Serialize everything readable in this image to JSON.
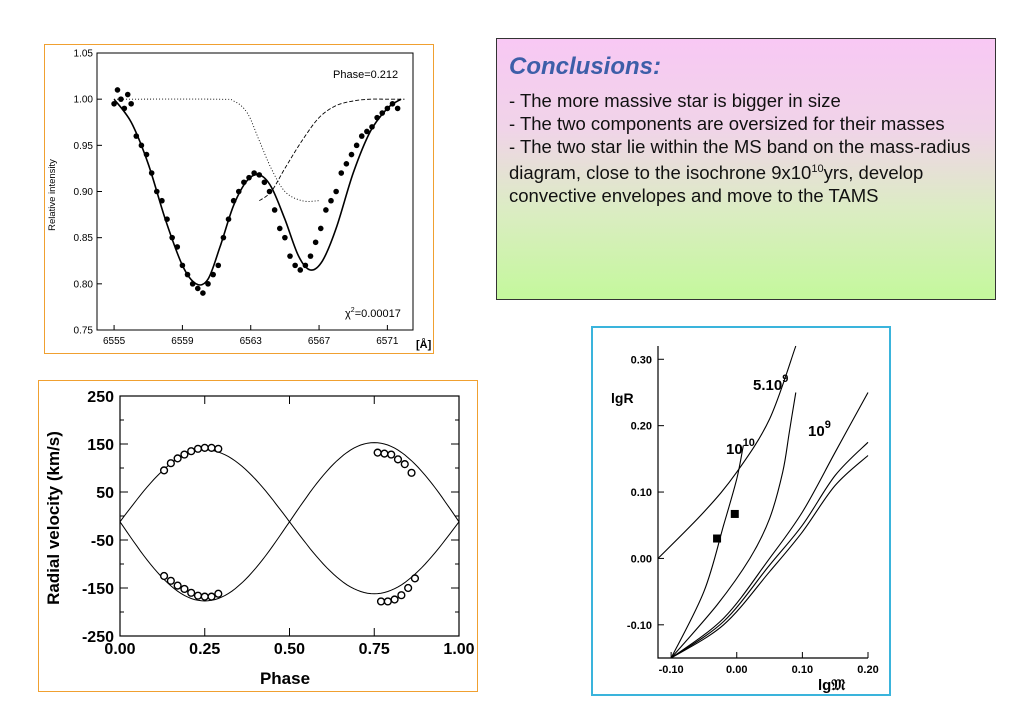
{
  "conclusions": {
    "title": "Conclusions:",
    "line1": "- The more massive star is bigger in size",
    "line2": "- The two components are oversized for their masses",
    "line3_pre": "- The two star lie within the MS band on the mass-radius diagram, close to the isochrone 9x10",
    "line3_sup": "10",
    "line3_post": "yrs, develop convective envelopes and move to the TAMS"
  },
  "colors": {
    "spectrum_frame": "#f0a030",
    "rv_frame": "#f0a030",
    "mr_frame": "#3ab4dc",
    "conclusions_border": "#333333"
  },
  "chart_data": [
    {
      "type": "scatter",
      "ylabel": "Relative intensity",
      "xunit": "[Å]",
      "phase_label": "Phase=0.212",
      "chi2_label": "χ",
      "chi2_sup": "2",
      "chi2_value": "=0.00017",
      "xlim": [
        6554,
        6572.5
      ],
      "ylim": [
        0.75,
        1.05
      ],
      "xticks": [
        "6555",
        "6559",
        "6563",
        "6567",
        "6571"
      ],
      "yticks": [
        "0.75",
        "0.80",
        "0.85",
        "0.90",
        "0.95",
        "1.00",
        "1.05"
      ],
      "series": [
        {
          "style": "points",
          "x": [
            6555.0,
            6555.2,
            6555.4,
            6555.6,
            6555.8,
            6556.0,
            6556.3,
            6556.6,
            6556.9,
            6557.2,
            6557.5,
            6557.8,
            6558.1,
            6558.4,
            6558.7,
            6559.0,
            6559.3,
            6559.6,
            6559.9,
            6560.2,
            6560.5,
            6560.8,
            6561.1,
            6561.4,
            6561.7,
            6562.0,
            6562.3,
            6562.6,
            6562.9,
            6563.2,
            6563.5,
            6563.8,
            6564.1,
            6564.4,
            6564.7,
            6565.0,
            6565.3,
            6565.6,
            6565.9,
            6566.2,
            6566.5,
            6566.8,
            6567.1,
            6567.4,
            6567.7,
            6568.0,
            6568.3,
            6568.6,
            6568.9,
            6569.2,
            6569.5,
            6569.8,
            6570.1,
            6570.4,
            6570.7,
            6571.0,
            6571.3,
            6571.6
          ],
          "y": [
            0.995,
            1.01,
            1.0,
            0.99,
            1.005,
            0.995,
            0.96,
            0.95,
            0.94,
            0.92,
            0.9,
            0.89,
            0.87,
            0.85,
            0.84,
            0.82,
            0.81,
            0.8,
            0.795,
            0.79,
            0.8,
            0.81,
            0.82,
            0.85,
            0.87,
            0.89,
            0.9,
            0.91,
            0.915,
            0.92,
            0.918,
            0.91,
            0.9,
            0.88,
            0.86,
            0.85,
            0.83,
            0.82,
            0.815,
            0.82,
            0.83,
            0.845,
            0.86,
            0.88,
            0.89,
            0.9,
            0.92,
            0.93,
            0.94,
            0.95,
            0.96,
            0.965,
            0.97,
            0.98,
            0.985,
            0.99,
            0.995,
            0.99
          ]
        },
        {
          "style": "solid",
          "x": [
            6555,
            6556,
            6557,
            6558,
            6559,
            6559.8,
            6560.5,
            6561.2,
            6562,
            6562.8,
            6563.5,
            6564.2,
            6565,
            6565.8,
            6566.5,
            6567.2,
            6568,
            6569,
            6570,
            6571,
            6571.8
          ],
          "y": [
            1.0,
            0.975,
            0.93,
            0.87,
            0.82,
            0.8,
            0.805,
            0.84,
            0.885,
            0.912,
            0.918,
            0.905,
            0.87,
            0.83,
            0.815,
            0.825,
            0.86,
            0.92,
            0.965,
            0.99,
            1.0
          ]
        },
        {
          "style": "dotted",
          "x": [
            6555,
            6561,
            6562,
            6562.8,
            6563.5,
            6564.2,
            6565,
            6566,
            6567
          ],
          "y": [
            1.0,
            1.0,
            0.998,
            0.985,
            0.955,
            0.925,
            0.9,
            0.89,
            0.89
          ]
        },
        {
          "style": "dashed",
          "x": [
            6563.5,
            6564.2,
            6565,
            6566,
            6567,
            6568,
            6569,
            6570,
            6571,
            6572
          ],
          "y": [
            0.89,
            0.9,
            0.925,
            0.955,
            0.98,
            0.993,
            0.998,
            1.0,
            1.0,
            1.0
          ]
        }
      ]
    },
    {
      "type": "line",
      "xlabel": "Phase",
      "ylabel": "Radial velocity (km/s)",
      "xlim": [
        0,
        1
      ],
      "ylim": [
        -250,
        250
      ],
      "xticks": [
        "0.00",
        "0.25",
        "0.50",
        "0.75",
        "1.00"
      ],
      "yticks": [
        "-250",
        "-150",
        "-50",
        "50",
        "150",
        "250"
      ],
      "gamma": -12,
      "amplitudes": [
        150,
        165
      ],
      "series": [
        {
          "name": "",
          "points_x": [
            0.13,
            0.15,
            0.17,
            0.19,
            0.21,
            0.23,
            0.25,
            0.27,
            0.29,
            0.76,
            0.78,
            0.8,
            0.82,
            0.84,
            0.86
          ],
          "points_y": [
            95,
            110,
            120,
            128,
            135,
            140,
            142,
            142,
            140,
            132,
            130,
            128,
            118,
            108,
            90
          ]
        },
        {
          "name": "",
          "points_x": [
            0.13,
            0.15,
            0.17,
            0.19,
            0.21,
            0.23,
            0.25,
            0.27,
            0.29,
            0.77,
            0.79,
            0.81,
            0.83,
            0.85,
            0.87
          ],
          "points_y": [
            -125,
            -135,
            -145,
            -152,
            -160,
            -166,
            -168,
            -168,
            -162,
            -178,
            -178,
            -174,
            -165,
            -150,
            -130
          ]
        }
      ]
    },
    {
      "type": "line",
      "xlabel": "lg𝔐",
      "ylabel": "lgR",
      "xlim": [
        -0.12,
        0.2
      ],
      "ylim": [
        -0.15,
        0.32
      ],
      "xticks": [
        "-0.10",
        "0.00",
        "0.10",
        "0.20"
      ],
      "yticks": [
        "-0.10",
        "0.00",
        "0.10",
        "0.20",
        "0.30"
      ],
      "labels": [
        {
          "base": "5.10",
          "sup": "9"
        },
        {
          "base": "10",
          "sup": "9"
        },
        {
          "base": "10",
          "sup": "10"
        }
      ],
      "points": {
        "x": [
          -0.03,
          -0.003
        ],
        "y": [
          0.03,
          0.067
        ]
      },
      "series": [
        {
          "name": "",
          "x": [
            -0.12,
            -0.05,
            0.0,
            0.05,
            0.09
          ],
          "y": [
            0.0,
            0.07,
            0.13,
            0.21,
            0.32
          ]
        },
        {
          "name": "",
          "x": [
            -0.1,
            -0.05,
            -0.02,
            0.0,
            0.01
          ],
          "y": [
            -0.15,
            -0.05,
            0.05,
            0.12,
            0.17
          ]
        },
        {
          "name": "",
          "x": [
            -0.1,
            -0.03,
            0.02,
            0.05,
            0.07,
            0.08,
            0.09
          ],
          "y": [
            -0.15,
            -0.07,
            0.0,
            0.06,
            0.13,
            0.19,
            0.25
          ]
        },
        {
          "name": "",
          "x": [
            -0.1,
            -0.02,
            0.05,
            0.1,
            0.15,
            0.2
          ],
          "y": [
            -0.15,
            -0.09,
            0.0,
            0.07,
            0.16,
            0.25
          ]
        },
        {
          "name": "",
          "x": [
            -0.1,
            -0.02,
            0.05,
            0.1,
            0.15,
            0.2
          ],
          "y": [
            -0.15,
            -0.1,
            -0.02,
            0.04,
            0.11,
            0.155
          ]
        },
        {
          "name": "",
          "x": [
            -0.1,
            -0.02,
            0.05,
            0.1,
            0.15,
            0.2
          ],
          "y": [
            -0.15,
            -0.095,
            -0.01,
            0.05,
            0.125,
            0.175
          ]
        }
      ]
    }
  ]
}
